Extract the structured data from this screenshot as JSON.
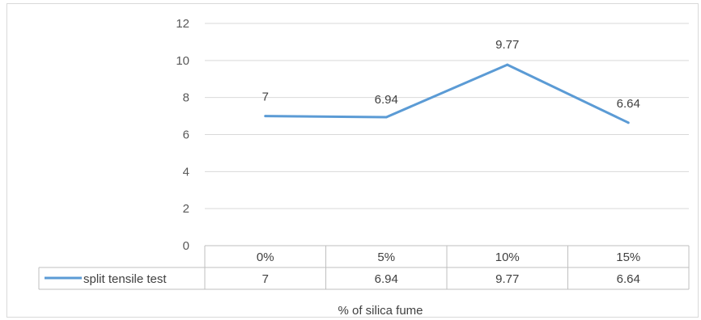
{
  "chart_data": {
    "type": "line",
    "categories": [
      "0%",
      "5%",
      "10%",
      "15%"
    ],
    "series": [
      {
        "name": "split tensile test",
        "values": [
          7,
          6.94,
          9.77,
          6.64
        ],
        "value_labels": [
          "7",
          "6.94",
          "9.77",
          "6.64"
        ],
        "color": "#5b9bd5"
      }
    ],
    "y_ticks": [
      "0",
      "2",
      "4",
      "6",
      "8",
      "10",
      "12"
    ],
    "ylim": [
      0,
      12
    ],
    "xlabel": "% of silica fume",
    "ylabel": "",
    "grid": true,
    "legend": "data-table"
  }
}
